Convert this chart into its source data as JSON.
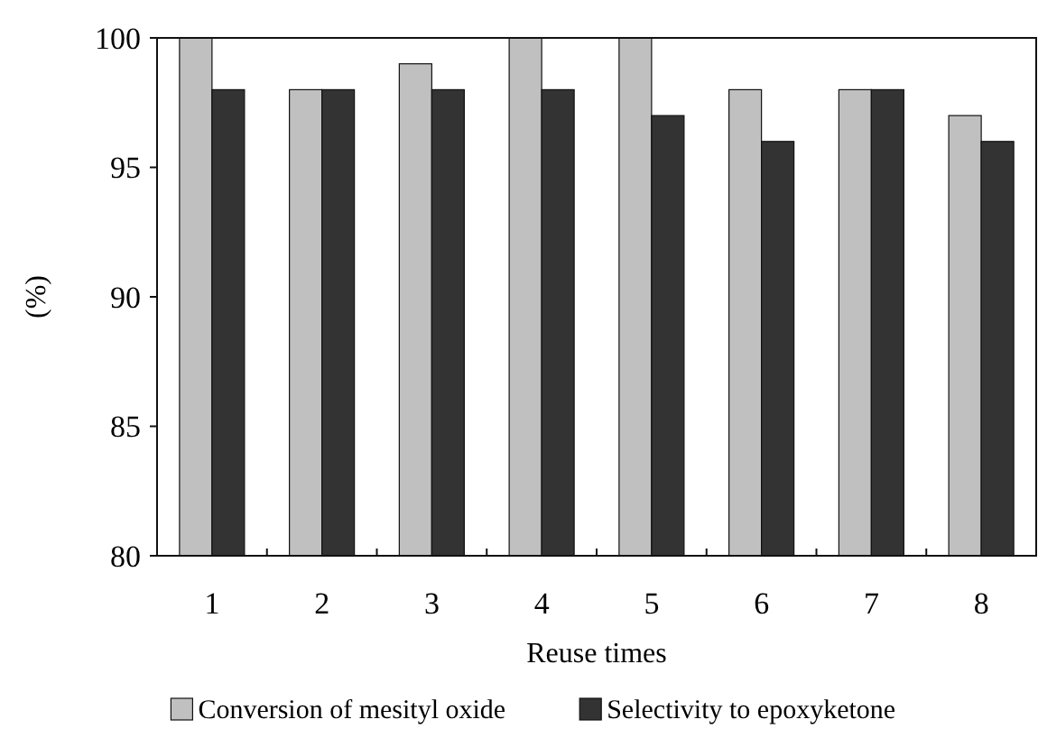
{
  "chart_data": {
    "type": "bar",
    "xlabel": "Reuse times",
    "ylabel": "(%)",
    "categories": [
      "1",
      "2",
      "3",
      "4",
      "5",
      "6",
      "7",
      "8"
    ],
    "series": [
      {
        "name": "Conversion of mesityl oxide",
        "color": "#c0c0c0",
        "values": [
          100,
          98,
          99,
          100,
          100,
          98,
          98,
          97
        ]
      },
      {
        "name": "Selectivity to epoxyketone",
        "color": "#333333",
        "values": [
          98,
          98,
          98,
          98,
          97,
          96,
          98,
          96
        ]
      }
    ],
    "ylim": [
      80,
      100
    ],
    "yticks": [
      80,
      85,
      90,
      95,
      100
    ],
    "grid": false,
    "legend": "bottom"
  }
}
